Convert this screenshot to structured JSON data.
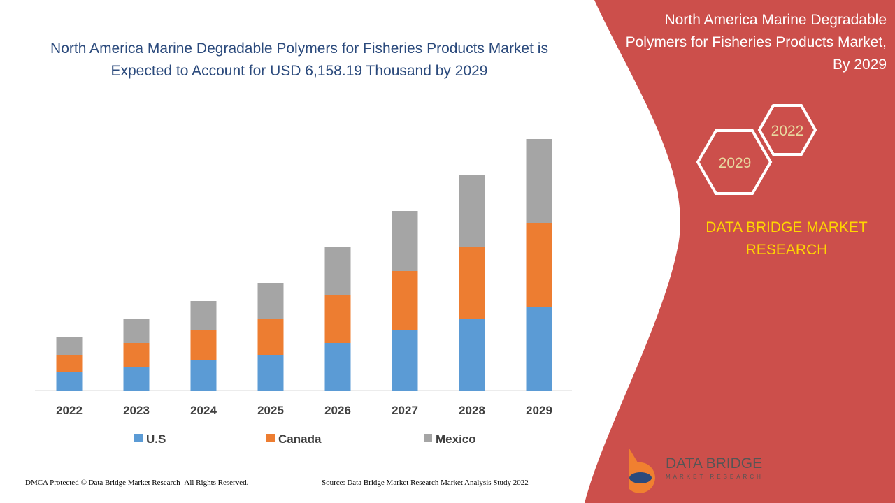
{
  "chart_data": {
    "type": "bar",
    "stacked": true,
    "title": "North America Marine Degradable Polymers for Fisheries Products Market is Expected to Account for USD 6,158.19 Thousand by 2029",
    "categories": [
      "2022",
      "2023",
      "2024",
      "2025",
      "2026",
      "2027",
      "2028",
      "2029"
    ],
    "series": [
      {
        "name": "U.S",
        "color": "#5b9bd5",
        "values": [
          26,
          34,
          43,
          51,
          68,
          86,
          103,
          120
        ]
      },
      {
        "name": "Canada",
        "color": "#ed7d31",
        "values": [
          25,
          34,
          43,
          52,
          69,
          85,
          102,
          120
        ]
      },
      {
        "name": "Mexico",
        "color": "#a5a5a5",
        "values": [
          26,
          35,
          42,
          51,
          68,
          86,
          103,
          120
        ]
      }
    ],
    "ylim": [
      0,
      360
    ]
  },
  "side_panel": {
    "title": "North America Marine Degradable Polymers for Fisheries Products Market, By 2029",
    "hexagons": [
      "2022",
      "2029"
    ],
    "brand": "DATA BRIDGE MARKET RESEARCH"
  },
  "logo": {
    "name": "DATA BRIDGE",
    "tagline": "MARKET RESEARCH"
  },
  "footer": {
    "left": "DMCA Protected © Data Bridge Market Research- All Rights Reserved.",
    "right": "Source: Data Bridge Market Research Market Analysis Study 2022"
  }
}
